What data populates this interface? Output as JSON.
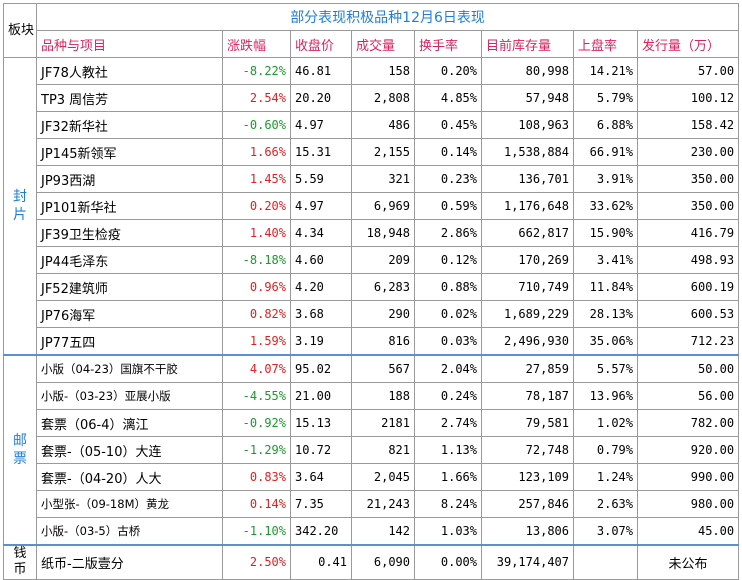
{
  "title": "部分表现积极品种12月6日表现",
  "plate_header": "板块",
  "headers": [
    "品种与项目",
    "涨跌幅",
    "收盘价",
    "成交量",
    "换手率",
    "目前库存量",
    "上盘率",
    "发行量（万）"
  ],
  "sections": [
    {
      "name": "封片",
      "rows": [
        {
          "name": "JF78人教社",
          "change": "-8.22%",
          "dir": "down",
          "close": "46.81",
          "volume": "158",
          "turnover": "0.20%",
          "stock": "80,998",
          "rate": "14.21%",
          "issue": "57.00"
        },
        {
          "name": "TP3 周信芳",
          "change": "2.54%",
          "dir": "up",
          "close": "20.20",
          "volume": "2,808",
          "turnover": "4.85%",
          "stock": "57,948",
          "rate": "5.79%",
          "issue": "100.12"
        },
        {
          "name": "JF32新华社",
          "change": "-0.60%",
          "dir": "down",
          "close": "4.97",
          "volume": "486",
          "turnover": "0.45%",
          "stock": "108,963",
          "rate": "6.88%",
          "issue": "158.42"
        },
        {
          "name": "JP145新领军",
          "change": "1.66%",
          "dir": "up",
          "close": "15.31",
          "volume": "2,155",
          "turnover": "0.14%",
          "stock": "1,538,884",
          "rate": "66.91%",
          "issue": "230.00"
        },
        {
          "name": "JP93西湖",
          "change": "1.45%",
          "dir": "up",
          "close": "5.59",
          "volume": "321",
          "turnover": "0.23%",
          "stock": "136,701",
          "rate": "3.91%",
          "issue": "350.00"
        },
        {
          "name": "JP101新华社",
          "change": "0.20%",
          "dir": "up",
          "close": "4.97",
          "volume": "6,969",
          "turnover": "0.59%",
          "stock": "1,176,648",
          "rate": "33.62%",
          "issue": "350.00"
        },
        {
          "name": "JF39卫生检疫",
          "change": "1.40%",
          "dir": "up",
          "close": "4.34",
          "volume": "18,948",
          "turnover": "2.86%",
          "stock": "662,817",
          "rate": "15.90%",
          "issue": "416.79"
        },
        {
          "name": "JP44毛泽东",
          "change": "-8.18%",
          "dir": "down",
          "close": "4.60",
          "volume": "209",
          "turnover": "0.12%",
          "stock": "170,269",
          "rate": "3.41%",
          "issue": "498.93"
        },
        {
          "name": "JF52建筑师",
          "change": "0.96%",
          "dir": "up",
          "close": "4.20",
          "volume": "6,283",
          "turnover": "0.88%",
          "stock": "710,749",
          "rate": "11.84%",
          "issue": "600.19"
        },
        {
          "name": "JP76海军",
          "change": "0.82%",
          "dir": "up",
          "close": "3.68",
          "volume": "290",
          "turnover": "0.02%",
          "stock": "1,689,229",
          "rate": "28.13%",
          "issue": "600.53"
        },
        {
          "name": "JP77五四",
          "change": "1.59%",
          "dir": "up",
          "close": "3.19",
          "volume": "816",
          "turnover": "0.03%",
          "stock": "2,496,930",
          "rate": "35.06%",
          "issue": "712.23"
        }
      ]
    },
    {
      "name": "邮票",
      "rows": [
        {
          "name": "小版（04-23）国旗不干胶",
          "small": true,
          "change": "4.07%",
          "dir": "up",
          "close": "95.02",
          "volume": "567",
          "turnover": "2.04%",
          "stock": "27,859",
          "rate": "5.57%",
          "issue": "50.00"
        },
        {
          "name": "小版-（03-23）亚展小版",
          "small": true,
          "change": "-4.55%",
          "dir": "down",
          "close": "21.00",
          "volume": "188",
          "turnover": "0.24%",
          "stock": "78,187",
          "rate": "13.96%",
          "issue": "56.00"
        },
        {
          "name": "套票（06-4）漓江",
          "change": "-0.92%",
          "dir": "down",
          "close": "15.13",
          "volume": "2181",
          "turnover": "2.74%",
          "stock": "79,581",
          "rate": "1.02%",
          "issue": "782.00"
        },
        {
          "name": "套票-（05-10）大连",
          "change": "-1.29%",
          "dir": "down",
          "close": "10.72",
          "volume": "821",
          "turnover": "1.13%",
          "stock": "72,748",
          "rate": "0.79%",
          "issue": "920.00"
        },
        {
          "name": "套票-（04-20）人大",
          "change": "0.83%",
          "dir": "up",
          "close": "3.64",
          "volume": "2,045",
          "turnover": "1.66%",
          "stock": "123,109",
          "rate": "1.24%",
          "issue": "990.00"
        },
        {
          "name": "小型张-（09-18M）黄龙",
          "small": true,
          "change": "0.14%",
          "dir": "up",
          "close": "7.35",
          "volume": "21,243",
          "turnover": "8.24%",
          "stock": "257,846",
          "rate": "2.63%",
          "issue": "980.00"
        },
        {
          "name": "小版-（03-5）古桥",
          "small": true,
          "change": "-1.10%",
          "dir": "down",
          "close": "342.20",
          "volume": "142",
          "turnover": "1.03%",
          "stock": "13,806",
          "rate": "3.07%",
          "issue": "45.00"
        }
      ]
    }
  ],
  "currency": {
    "section": "钱币",
    "name": "纸币-二版壹分",
    "change": "2.50%",
    "dir": "up",
    "close": "0.41",
    "volume": "6,090",
    "turnover": "0.00%",
    "stock": "39,174,407",
    "issue": "未公布"
  },
  "colors": {
    "title": "#1f7fd8",
    "header": "#d8245e",
    "up": "#e02020",
    "down": "#1a9a2a",
    "separator": "#5b8fd0"
  }
}
